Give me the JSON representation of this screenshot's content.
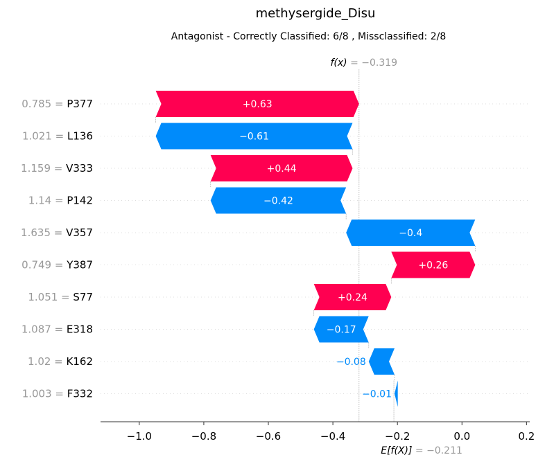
{
  "chart_data": {
    "type": "waterfall",
    "title": "methysergide_Disu",
    "subtitle": "Antagonist - Correctly Classified: 6/8 , Missclassified: 2/8",
    "fx_label": "f(x)",
    "fx_value_text": " = −0.319",
    "fx": -0.319,
    "efx_label": "E[f(X)]",
    "efx_value_text": " = −0.211",
    "efx": -0.211,
    "xlim": [
      -1.12,
      0.21
    ],
    "xticks": [
      -1.0,
      -0.8,
      -0.6,
      -0.4,
      -0.2,
      0.0,
      0.2
    ],
    "xtick_labels": [
      "−1.0",
      "−0.8",
      "−0.6",
      "−0.4",
      "−0.2",
      "0.0",
      "0.2"
    ],
    "grid": false,
    "colors": {
      "positive": "#ff0051",
      "negative": "#008bfb",
      "muted": "#999999"
    },
    "features": [
      {
        "value_text": "0.785 = ",
        "name": "P377",
        "start": -0.319,
        "end": -0.949,
        "label": "+0.63"
      },
      {
        "value_text": "1.021 = ",
        "name": "L136",
        "start": -0.949,
        "end": -0.339,
        "label": "−0.61"
      },
      {
        "value_text": "1.159 = ",
        "name": "V333",
        "start": -0.339,
        "end": -0.779,
        "label": "+0.44"
      },
      {
        "value_text": "1.14 = ",
        "name": "P142",
        "start": -0.779,
        "end": -0.359,
        "label": "−0.42"
      },
      {
        "value_text": "1.635 = ",
        "name": "V357",
        "start": -0.359,
        "end": 0.041,
        "label": "−0.4"
      },
      {
        "value_text": "0.749 = ",
        "name": "Y387",
        "start": 0.041,
        "end": -0.219,
        "label": "+0.26"
      },
      {
        "value_text": "1.051 = ",
        "name": "S77",
        "start": -0.219,
        "end": -0.459,
        "label": "+0.24"
      },
      {
        "value_text": "1.087 = ",
        "name": "E318",
        "start": -0.459,
        "end": -0.289,
        "label": "−0.17"
      },
      {
        "value_text": "1.02 = ",
        "name": "K162",
        "start": -0.289,
        "end": -0.209,
        "label": "−0.08"
      },
      {
        "value_text": "1.003 = ",
        "name": "F332",
        "start": -0.209,
        "end": -0.199,
        "label": "−0.01"
      }
    ]
  }
}
